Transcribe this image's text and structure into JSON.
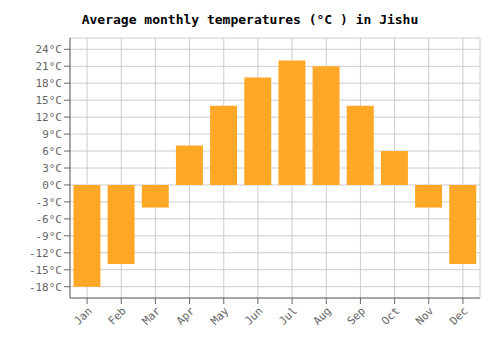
{
  "chart_data": {
    "type": "bar",
    "title": "Average monthly temperatures (°C ) in Jishu",
    "categories": [
      "Jan",
      "Feb",
      "Mar",
      "Apr",
      "May",
      "Jun",
      "Jul",
      "Aug",
      "Sep",
      "Oct",
      "Nov",
      "Dec"
    ],
    "values": [
      -18,
      -14,
      -4,
      7,
      14,
      19,
      22,
      21,
      14,
      6,
      -4,
      -14
    ],
    "color": "#FFA726",
    "ylim": [
      -20,
      26
    ],
    "yticks": [
      {
        "value": -18,
        "label": "-18°C"
      },
      {
        "value": -15,
        "label": "-15°C"
      },
      {
        "value": -12,
        "label": "-12°C"
      },
      {
        "value": -9,
        "label": "-9°C"
      },
      {
        "value": -6,
        "label": "-6°C"
      },
      {
        "value": -3,
        "label": "-3°C"
      },
      {
        "value": 0,
        "label": "0°C"
      },
      {
        "value": 3,
        "label": "3°C"
      },
      {
        "value": 6,
        "label": "6°C"
      },
      {
        "value": 9,
        "label": "9°C"
      },
      {
        "value": 12,
        "label": "12°C"
      },
      {
        "value": 15,
        "label": "15°C"
      },
      {
        "value": 18,
        "label": "18°C"
      },
      {
        "value": 21,
        "label": "21°C"
      },
      {
        "value": 24,
        "label": "24°C"
      }
    ],
    "grid": true
  }
}
